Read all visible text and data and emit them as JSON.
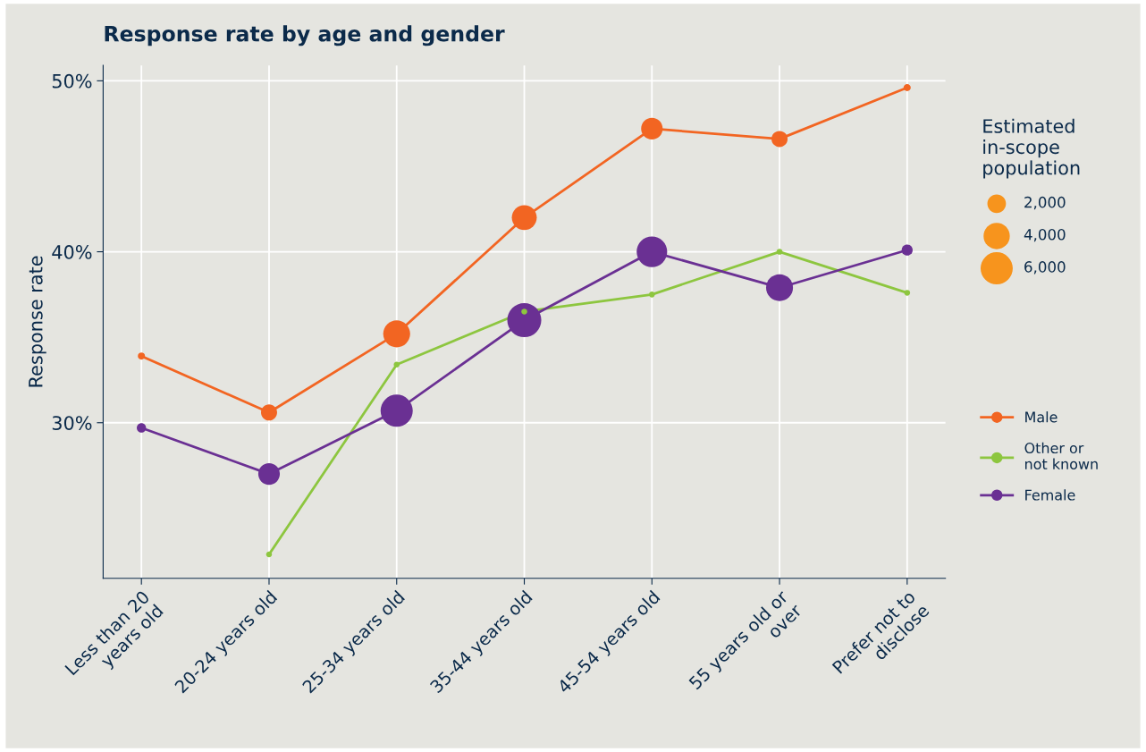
{
  "chart_data": {
    "type": "bubble",
    "title": "Response rate by age and gender",
    "ylabel": "Response rate",
    "legend_title": "Estimated\nin-scope\npopulation",
    "categories": [
      "Less than 20\nyears old",
      "20-24 years old",
      "25-34 years old",
      "35-44 years old",
      "45-54 years old",
      "55 years old or\nover",
      "Prefer not to\ndisclose"
    ],
    "series": [
      {
        "name": "Male",
        "type": "line",
        "marker": "none",
        "color": "#f26522",
        "values": [
          33.9,
          30.6,
          35.2,
          42.0,
          47.2,
          46.6,
          49.6
        ]
      },
      {
        "name": "Other or\nnot known",
        "type": "line",
        "marker": "none",
        "color": "#8dc63f",
        "values": [
          null,
          22.3,
          33.4,
          36.5,
          37.5,
          40.0,
          37.6
        ]
      },
      {
        "name": "Female",
        "type": "line",
        "marker": "none",
        "color": "#6a3093",
        "values": [
          29.7,
          27.0,
          30.7,
          36.0,
          40.0,
          37.9,
          40.1
        ]
      },
      {
        "color": "#f26522",
        "values": [
          33.9,
          30.6,
          35.2,
          42.0,
          47.2,
          46.6,
          49.6
        ],
        "sizes": [
          300,
          1500,
          4200,
          3600,
          2700,
          1500,
          300
        ]
      },
      {
        "color": "#8dc63f",
        "values": [
          null,
          22.3,
          33.4,
          36.5,
          37.5,
          40.0,
          37.6
        ],
        "sizes": [
          null,
          200,
          200,
          200,
          200,
          200,
          200
        ]
      },
      {
        "color": "#6a3093",
        "values": [
          29.7,
          27.0,
          30.7,
          36.0,
          40.0,
          37.9,
          40.1
        ],
        "sizes": [
          500,
          2700,
          6000,
          6700,
          5400,
          4200,
          700
        ]
      }
    ],
    "size_legend": [
      {
        "value": 2000,
        "label": "2,000"
      },
      {
        "value": 4000,
        "label": "4,000"
      },
      {
        "value": 6000,
        "label": "6,000"
      }
    ],
    "ylim": [
      20.9,
      50.9
    ],
    "yticks": [
      {
        "value": 30,
        "label": "30%"
      },
      {
        "value": 40,
        "label": "40%"
      },
      {
        "value": 50,
        "label": "50%"
      }
    ],
    "grid": true,
    "legend": "right",
    "marker": "circle",
    "line_style": "solid"
  }
}
